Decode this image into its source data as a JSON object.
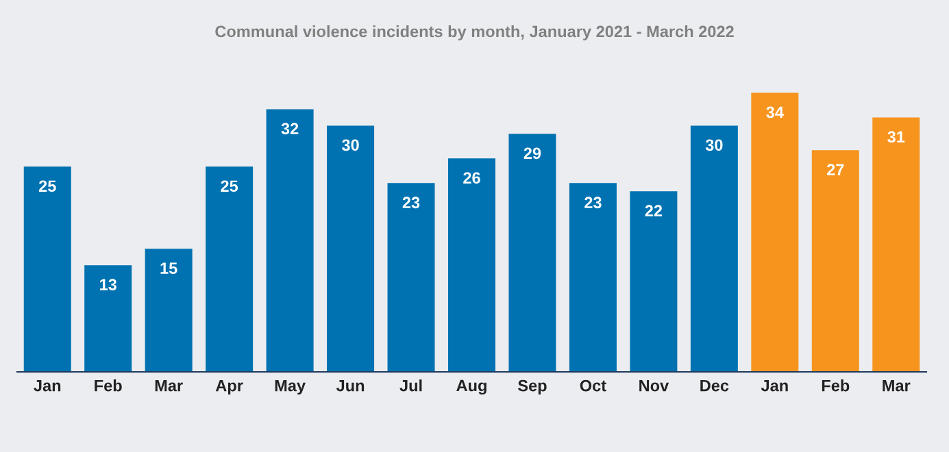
{
  "chart_data": {
    "type": "bar",
    "title": "Communal violence incidents by month, January 2021 - March 2022",
    "categories": [
      "Jan",
      "Feb",
      "Mar",
      "Apr",
      "May",
      "Jun",
      "Jul",
      "Aug",
      "Sep",
      "Oct",
      "Nov",
      "Dec",
      "Jan",
      "Feb",
      "Mar"
    ],
    "values": [
      25,
      13,
      15,
      25,
      32,
      30,
      23,
      26,
      29,
      23,
      22,
      30,
      34,
      27,
      31
    ],
    "colors": [
      "#0072b1",
      "#0072b1",
      "#0072b1",
      "#0072b1",
      "#0072b1",
      "#0072b1",
      "#0072b1",
      "#0072b1",
      "#0072b1",
      "#0072b1",
      "#0072b1",
      "#0072b1",
      "#f7941e",
      "#f7941e",
      "#f7941e"
    ],
    "data_labels": true,
    "grid": false,
    "legend": false
  }
}
